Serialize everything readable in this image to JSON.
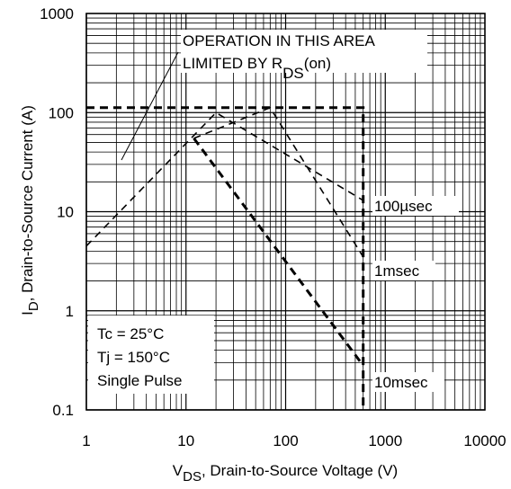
{
  "chart_data": {
    "type": "line",
    "title": "",
    "x_scale": "log",
    "y_scale": "log",
    "xlim": [
      1,
      10000
    ],
    "ylim": [
      0.1,
      1000
    ],
    "grid": true,
    "x_ticks": [
      "1",
      "10",
      "100",
      "1000",
      "10000"
    ],
    "y_ticks": [
      "0.1",
      "1",
      "10",
      "100",
      "1000"
    ],
    "xlabel": {
      "main": "V",
      "sub": "DS",
      "rest": ", Drain-to-Source Voltage (V)"
    },
    "ylabel": {
      "main": "I",
      "sub": "D",
      "rest": ",  Drain-to-Source Current (A)"
    },
    "series": [
      {
        "name": "100µsec",
        "style": "dashed",
        "width": 1.6,
        "points": [
          [
            1,
            4.5
          ],
          [
            20,
            100
          ],
          [
            600,
            13
          ]
        ]
      },
      {
        "name": "1msec",
        "style": "dashed",
        "width": 1.6,
        "points": [
          [
            12,
            55
          ],
          [
            70,
            112
          ],
          [
            600,
            3.5
          ]
        ]
      },
      {
        "name": "10msec",
        "style": "dashed",
        "width": 3,
        "points": [
          [
            12,
            55
          ],
          [
            600,
            0.28
          ]
        ]
      },
      {
        "name": "limit",
        "style": "dashed",
        "width": 3,
        "points": [
          [
            1,
            112
          ],
          [
            600,
            112
          ],
          [
            600,
            0.1
          ]
        ]
      }
    ],
    "annotations": {
      "region_line1": "OPERATION IN THIS AREA",
      "region_line2_main": "LIMITED BY R",
      "region_line2_sub": "DS",
      "region_line2_rest": "(on)",
      "conditions": [
        "Tc = 25°C",
        "Tj = 150°C",
        "Single Pulse"
      ]
    }
  }
}
